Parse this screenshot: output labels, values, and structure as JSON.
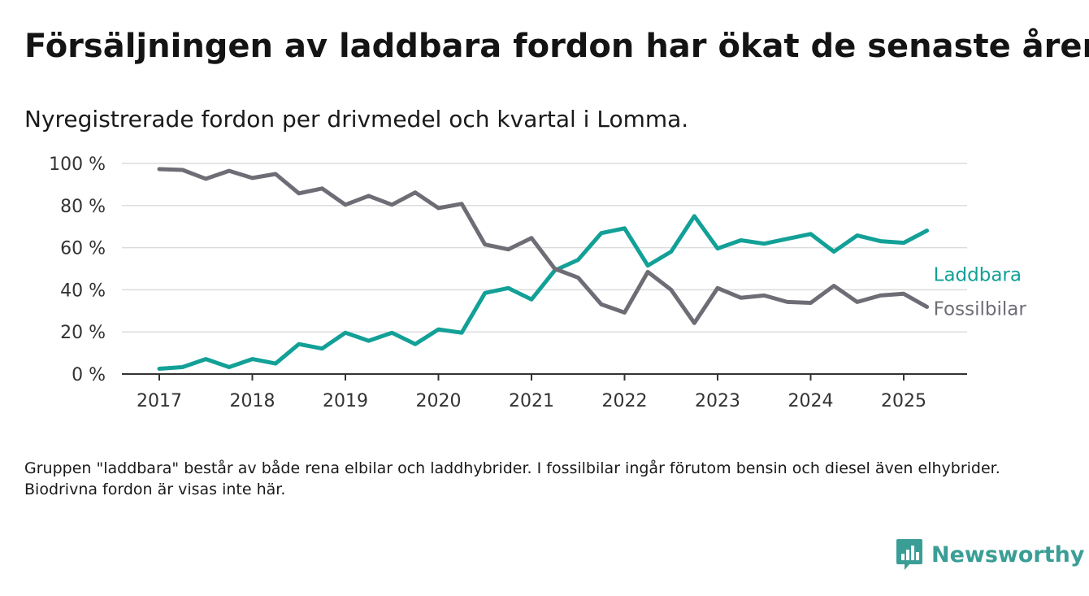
{
  "title": "Försäljningen av laddbara fordon har ökat de senaste åren",
  "subtitle": "Nyregistrerade fordon per drivmedel och kvartal i Lomma.",
  "footnote": "Gruppen \"laddbara\" består av både rena elbilar och laddhybrider. I fossilbilar ingår förutom bensin och diesel även elhybrider. Biodrivna fordon är visas inte här.",
  "brand": {
    "name": "Newsworthy",
    "color": "#3a9e96",
    "icon": "bar-chart-icon"
  },
  "chart_data": {
    "type": "line",
    "title": "Försäljningen av laddbara fordon har ökat de senaste åren",
    "subtitle": "Nyregistrerade fordon per drivmedel och kvartal i Lomma.",
    "xlabel": "",
    "ylabel": "",
    "ylim": [
      0,
      100
    ],
    "grid": true,
    "legend": "line-end",
    "x_ticks": [
      "2017",
      "2018",
      "2019",
      "2020",
      "2021",
      "2022",
      "2023",
      "2024",
      "2025"
    ],
    "y_ticks": [
      "0 %",
      "20 %",
      "40 %",
      "60 %",
      "80 %",
      "100 %"
    ],
    "x": [
      2017.0,
      2017.25,
      2017.5,
      2017.75,
      2018.0,
      2018.25,
      2018.5,
      2018.75,
      2019.0,
      2019.25,
      2019.5,
      2019.75,
      2020.0,
      2020.25,
      2020.5,
      2020.75,
      2021.0,
      2021.25,
      2021.5,
      2021.75,
      2022.0,
      2022.25,
      2022.5,
      2022.75,
      2023.0,
      2023.25,
      2023.5,
      2023.75,
      2024.0,
      2024.25,
      2024.5,
      2024.75,
      2025.0,
      2025.25
    ],
    "series": [
      {
        "name": "Laddbara",
        "color": "#12a097",
        "values": [
          2.5,
          3.3,
          7.1,
          3.3,
          7.1,
          5.0,
          14.2,
          12.1,
          19.6,
          15.8,
          19.6,
          14.2,
          21.2,
          19.6,
          38.5,
          40.8,
          35.4,
          49.2,
          54.2,
          66.9,
          69.2,
          51.5,
          58.1,
          75.0,
          59.6,
          63.5,
          61.9,
          64.2,
          66.5,
          58.1,
          65.8,
          63.1,
          62.3,
          68.1
        ]
      },
      {
        "name": "Fossilbilar",
        "color": "#6e6d76",
        "values": [
          97.3,
          96.9,
          92.7,
          96.5,
          93.1,
          95.0,
          85.8,
          88.1,
          80.4,
          84.6,
          80.4,
          86.2,
          78.8,
          80.8,
          61.5,
          59.2,
          64.6,
          50.0,
          45.8,
          33.1,
          29.2,
          48.5,
          40.0,
          24.2,
          40.8,
          36.2,
          37.3,
          34.2,
          33.8,
          41.9,
          34.2,
          37.3,
          38.1,
          31.9
        ]
      }
    ]
  }
}
